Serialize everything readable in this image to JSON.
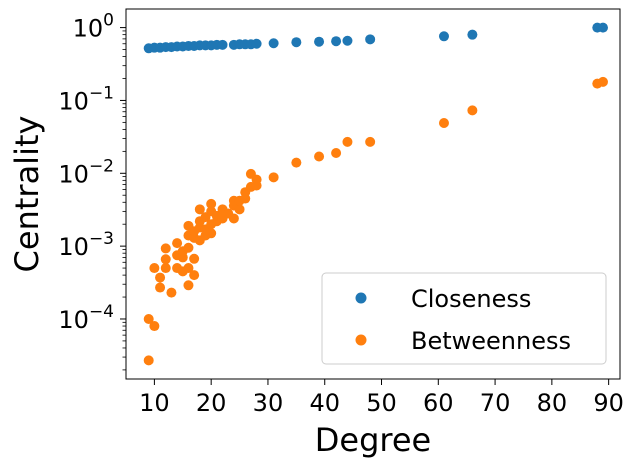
{
  "chart_data": {
    "type": "scatter",
    "title": "",
    "xlabel": "Degree",
    "ylabel": "Centrality",
    "yscale": "log",
    "xlim": [
      5,
      92
    ],
    "ylim": [
      1.5e-05,
      1.8
    ],
    "grid": false,
    "legend_position": "bottom-right",
    "x_ticks": [
      10,
      20,
      30,
      40,
      50,
      60,
      70,
      80,
      90
    ],
    "y_ticks": [
      {
        "value": 1,
        "base": "10",
        "exp": "0"
      },
      {
        "value": 0.1,
        "base": "10",
        "exp": "−1"
      },
      {
        "value": 0.01,
        "base": "10",
        "exp": "−2"
      },
      {
        "value": 0.001,
        "base": "10",
        "exp": "−3"
      },
      {
        "value": 0.0001,
        "base": "10",
        "exp": "−4"
      }
    ],
    "series": [
      {
        "name": "Closeness",
        "color": "#1f77b4",
        "points": [
          [
            9,
            0.52
          ],
          [
            10,
            0.53
          ],
          [
            11,
            0.53
          ],
          [
            12,
            0.54
          ],
          [
            13,
            0.54
          ],
          [
            14,
            0.55
          ],
          [
            15,
            0.55
          ],
          [
            16,
            0.56
          ],
          [
            17,
            0.56
          ],
          [
            18,
            0.57
          ],
          [
            19,
            0.57
          ],
          [
            20,
            0.57
          ],
          [
            21,
            0.58
          ],
          [
            22,
            0.58
          ],
          [
            24,
            0.58
          ],
          [
            25,
            0.59
          ],
          [
            26,
            0.59
          ],
          [
            27,
            0.59
          ],
          [
            28,
            0.6
          ],
          [
            31,
            0.61
          ],
          [
            35,
            0.63
          ],
          [
            39,
            0.64
          ],
          [
            42,
            0.65
          ],
          [
            44,
            0.66
          ],
          [
            48,
            0.69
          ],
          [
            61,
            0.76
          ],
          [
            66,
            0.8
          ],
          [
            88,
            1.0
          ],
          [
            89,
            1.0
          ]
        ]
      },
      {
        "name": "Betweenness",
        "color": "#ff7f0e",
        "points": [
          [
            9,
            2.7e-05
          ],
          [
            9,
            0.0001
          ],
          [
            10,
            8e-05
          ],
          [
            10,
            0.0005
          ],
          [
            11,
            0.00027
          ],
          [
            11,
            0.00037
          ],
          [
            12,
            0.0005
          ],
          [
            12,
            0.00066
          ],
          [
            12,
            0.00093
          ],
          [
            13,
            0.00023
          ],
          [
            14,
            0.0005
          ],
          [
            14,
            0.00075
          ],
          [
            14,
            0.0011
          ],
          [
            15,
            0.00045
          ],
          [
            15,
            0.0007
          ],
          [
            15,
            0.00085
          ],
          [
            16,
            0.00029
          ],
          [
            16,
            0.0005
          ],
          [
            16,
            0.00095
          ],
          [
            16,
            0.0014
          ],
          [
            16,
            0.0019
          ],
          [
            17,
            0.0004
          ],
          [
            17,
            0.00067
          ],
          [
            17,
            0.0013
          ],
          [
            17,
            0.0016
          ],
          [
            18,
            0.0012
          ],
          [
            18,
            0.0018
          ],
          [
            18,
            0.0022
          ],
          [
            18,
            0.0032
          ],
          [
            19,
            0.0014
          ],
          [
            19,
            0.0017
          ],
          [
            19,
            0.0025
          ],
          [
            20,
            0.0015
          ],
          [
            20,
            0.002
          ],
          [
            20,
            0.003
          ],
          [
            20,
            0.0038
          ],
          [
            21,
            0.0022
          ],
          [
            21,
            0.0026
          ],
          [
            22,
            0.0024
          ],
          [
            22,
            0.0032
          ],
          [
            23,
            0.0028
          ],
          [
            24,
            0.0024
          ],
          [
            24,
            0.0036
          ],
          [
            24,
            0.0042
          ],
          [
            25,
            0.0032
          ],
          [
            25,
            0.0042
          ],
          [
            26,
            0.0045
          ],
          [
            26,
            0.0055
          ],
          [
            27,
            0.0065
          ],
          [
            27,
            0.0098
          ],
          [
            28,
            0.0068
          ],
          [
            28,
            0.0082
          ],
          [
            31,
            0.0088
          ],
          [
            35,
            0.014
          ],
          [
            39,
            0.017
          ],
          [
            42,
            0.019
          ],
          [
            44,
            0.027
          ],
          [
            48,
            0.027
          ],
          [
            61,
            0.049
          ],
          [
            66,
            0.073
          ],
          [
            88,
            0.17
          ],
          [
            89,
            0.18
          ]
        ]
      }
    ]
  }
}
